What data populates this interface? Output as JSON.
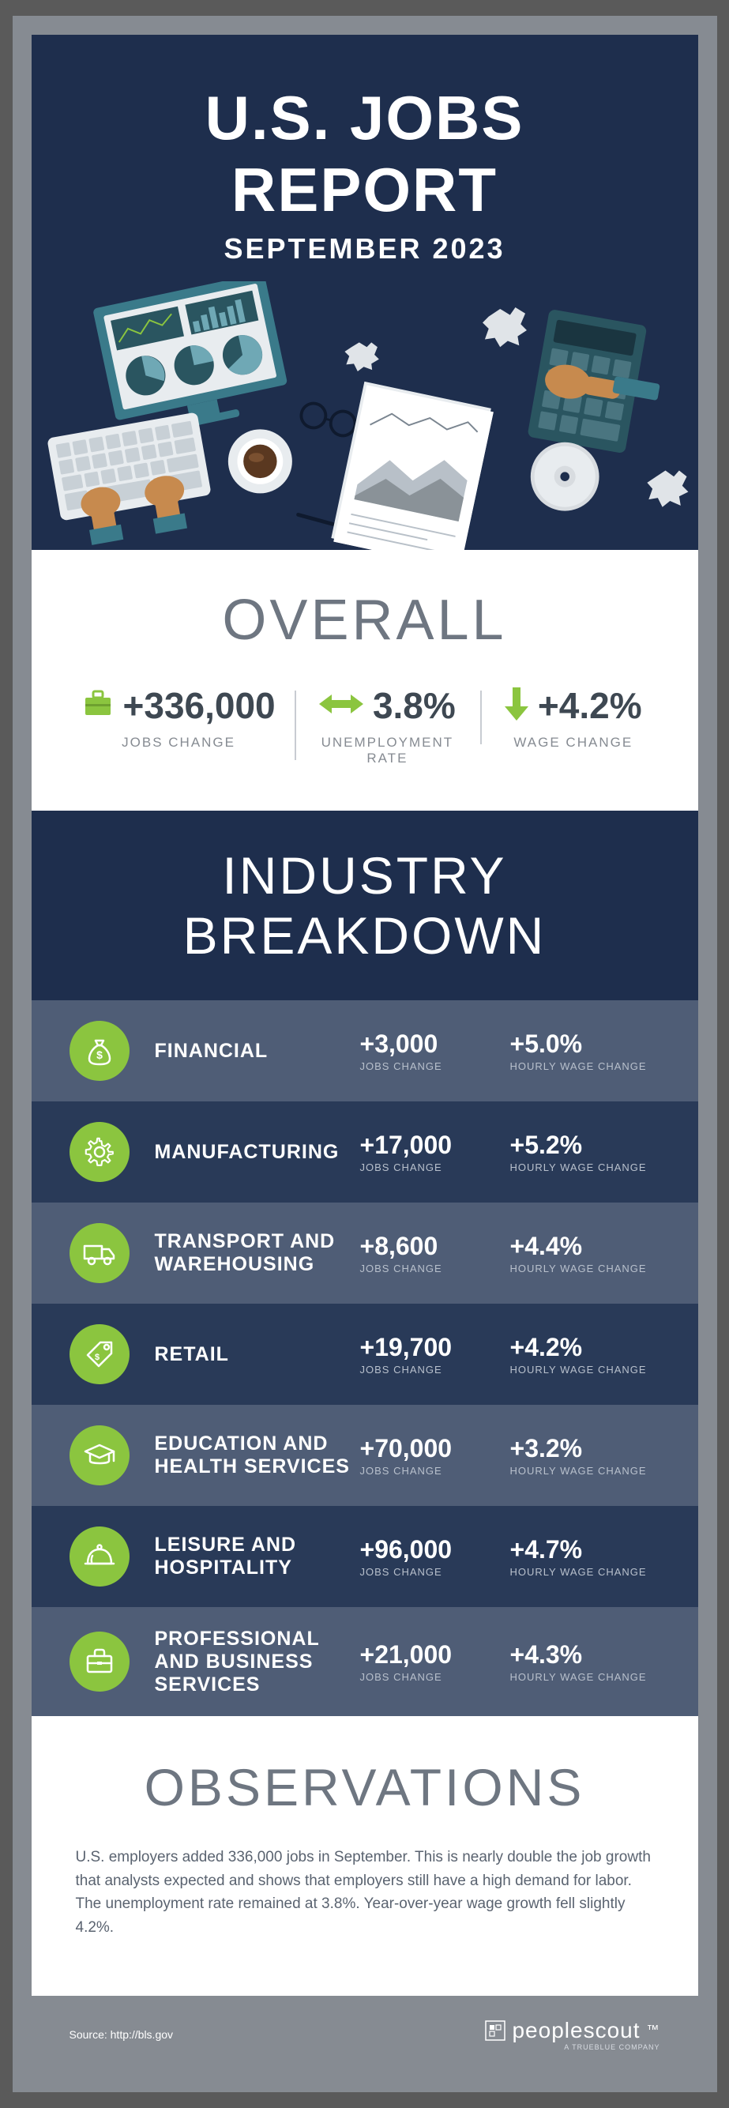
{
  "colors": {
    "navy": "#1e2e4d",
    "frame": "#868b92",
    "green": "#8bc53f",
    "row_a": "#4f5d76",
    "row_b": "#293a58",
    "white": "#ffffff",
    "gray_text_light": "#868b92",
    "gray_text_mid": "#6e7681",
    "gray_text_dark": "#3e4852",
    "teal": "#3a7a8a"
  },
  "typography": {
    "title_size": 78,
    "subtitle_size": 36,
    "section_title_size": 66,
    "overall_title_size": 72,
    "stat_value_size": 46,
    "stat_label_size": 17,
    "industry_name_size": 25,
    "industry_value_size": 32,
    "industry_label_size": 13,
    "body_size": 19,
    "font_family": "Arial Narrow"
  },
  "header": {
    "title": "U.S. JOBS REPORT",
    "subtitle": "SEPTEMBER 2023"
  },
  "overall": {
    "title": "OVERALL",
    "jobs": {
      "value": "+336,000",
      "label": "JOBS CHANGE",
      "icon": "briefcase-icon"
    },
    "unemployment": {
      "value": "3.8%",
      "label": "UNEMPLOYMENT RATE",
      "icon": "arrows-lr-icon"
    },
    "wage": {
      "value": "+4.2%",
      "label": "WAGE CHANGE",
      "icon": "arrow-down-icon"
    }
  },
  "breakdown": {
    "title": "INDUSTRY BREAKDOWN",
    "jobs_label": "JOBS CHANGE",
    "wage_label": "HOURLY WAGE CHANGE",
    "rows": [
      {
        "name": "FINANCIAL",
        "jobs": "+3,000",
        "wage": "+5.0%",
        "icon": "money-bag-icon"
      },
      {
        "name": "MANUFACTURING",
        "jobs": "+17,000",
        "wage": "+5.2%",
        "icon": "gear-icon"
      },
      {
        "name": "TRANSPORT AND WAREHOUSING",
        "jobs": "+8,600",
        "wage": "+4.4%",
        "icon": "truck-icon"
      },
      {
        "name": "RETAIL",
        "jobs": "+19,700",
        "wage": "+4.2%",
        "icon": "price-tag-icon"
      },
      {
        "name": "EDUCATION AND HEALTH SERVICES",
        "jobs": "+70,000",
        "wage": "+3.2%",
        "icon": "grad-cap-icon"
      },
      {
        "name": "LEISURE AND HOSPITALITY",
        "jobs": "+96,000",
        "wage": "+4.7%",
        "icon": "cloche-icon"
      },
      {
        "name": "PROFESSIONAL AND BUSINESS SERVICES",
        "jobs": "+21,000",
        "wage": "+4.3%",
        "icon": "briefcase-outline-icon"
      }
    ]
  },
  "observations": {
    "title": "OBSERVATIONS",
    "text": "U.S. employers added 336,000 jobs in September. This is nearly double the job growth that analysts expected and shows that employers still have a high demand for labor. The unemployment rate remained at 3.8%. Year-over-year wage growth fell slightly 4.2%."
  },
  "footer": {
    "source": "Source: http://bls.gov",
    "logo": "peoplescout",
    "tagline": "A TRUEBLUE COMPANY"
  }
}
